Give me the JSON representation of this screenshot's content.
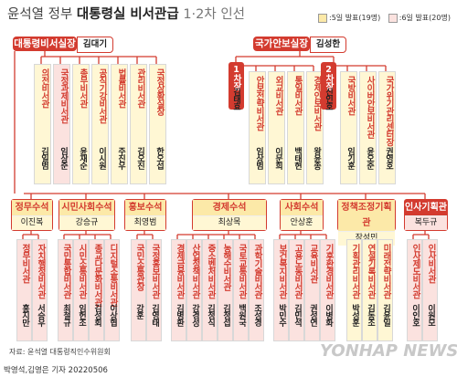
{
  "title": {
    "prefix": "윤석열 정부",
    "main": "대통령실 비서관급",
    "suffix": "1·2차 인선"
  },
  "legend": {
    "first": ":5일 발표(19명)",
    "second": ":6일 발표(20명)",
    "first_color": "#fce9a8",
    "second_color": "#fbe2df"
  },
  "chief": {
    "title": "대통령비서실장",
    "name": "김대기"
  },
  "security": {
    "title": "국가안보실장",
    "name": "김성한"
  },
  "vice1": {
    "label": "1차장",
    "name": "김태효"
  },
  "vice2": {
    "label": "2차장",
    "name": "신인호"
  },
  "chief_staff": [
    {
      "role": "의전비서관",
      "name": "김일범",
      "tone": "y"
    },
    {
      "role": "국정과제비서관",
      "name": "임상준",
      "tone": "p"
    },
    {
      "role": "총무비서관",
      "name": "윤재순",
      "tone": "y"
    },
    {
      "role": "공직기강비서관",
      "name": "이시원",
      "tone": "y"
    },
    {
      "role": "법률비서관",
      "name": "주진우",
      "tone": "y"
    },
    {
      "role": "관리비서관",
      "name": "김오진",
      "tone": "y"
    },
    {
      "role": "국정상황실장",
      "name": "한오섭",
      "tone": "y"
    }
  ],
  "vice1_staff": [
    {
      "role": "안보전략비서관",
      "name": "임상범",
      "tone": "y"
    },
    {
      "role": "외교비서관",
      "name": "이문희",
      "tone": "y"
    },
    {
      "role": "통일비서관",
      "name": "백태현",
      "tone": "y"
    },
    {
      "role": "경제안보비서관",
      "name": "왕윤종",
      "tone": "y"
    }
  ],
  "vice2_staff": [
    {
      "role": "국방비서관",
      "name": "임기훈",
      "tone": "y"
    },
    {
      "role": "사이버안보비서관",
      "name": "윤오준",
      "tone": "y"
    },
    {
      "role": "국가위기관리센터장",
      "name": "권영호",
      "tone": "y"
    }
  ],
  "secretaries": [
    {
      "title": "정무수석",
      "name": "이진복",
      "tone": "y"
    },
    {
      "title": "시민사회수석",
      "name": "강승규",
      "tone": "y"
    },
    {
      "title": "홍보수석",
      "name": "최영범",
      "tone": "y"
    },
    {
      "title": "경제수석",
      "name": "최상목",
      "tone": "y"
    },
    {
      "title": "사회수석",
      "name": "안상훈",
      "tone": "y"
    },
    {
      "title": "정책조정기획관",
      "name": "장성민",
      "tone": "y"
    },
    {
      "title": "인사기획관",
      "name": "복두규",
      "tone": "p"
    }
  ],
  "bottom_staff": [
    {
      "role": "정무비서관",
      "name": "홍지만",
      "tone": "p"
    },
    {
      "role": "자치행정비서관",
      "name": "서승우",
      "tone": "p"
    },
    {
      "role": "국민통합비서관",
      "name": "최철규",
      "tone": "p"
    },
    {
      "role": "시민소통비서관",
      "name": "임헌조",
      "tone": "p"
    },
    {
      "role": "종교다문화비서관",
      "name": "김성회",
      "tone": "p"
    },
    {
      "role": "디지털소통비서관",
      "name": "이상협",
      "tone": "p"
    },
    {
      "role": "국민소통관장",
      "name": "강훈",
      "tone": "p"
    },
    {
      "role": "국정홍보비서관",
      "name": "김영태",
      "tone": "p"
    },
    {
      "role": "경제금융비서관",
      "name": "김병환",
      "tone": "p"
    },
    {
      "role": "산업정책비서관",
      "name": "강경성",
      "tone": "p"
    },
    {
      "role": "중소벤처비서관",
      "name": "김정식",
      "tone": "p"
    },
    {
      "role": "농해수비서관",
      "name": "김정섭",
      "tone": "p"
    },
    {
      "role": "국토교통비서관",
      "name": "백원국",
      "tone": "p"
    },
    {
      "role": "과학기술비서관",
      "name": "조성경",
      "tone": "p"
    },
    {
      "role": "보건복지비서관",
      "name": "박민수",
      "tone": "p"
    },
    {
      "role": "고용노동비서관",
      "name": "김민석",
      "tone": "p"
    },
    {
      "role": "교육비서관",
      "name": "권성연",
      "tone": "p"
    },
    {
      "role": "기후환경비서관",
      "name": "이병화",
      "tone": "p"
    },
    {
      "role": "기획관리비서관",
      "name": "박성훈",
      "tone": "y"
    },
    {
      "role": "연설기록비서관",
      "name": "김동조",
      "tone": "y"
    },
    {
      "role": "미래전략비서관",
      "name": "김윤일",
      "tone": "y"
    },
    {
      "role": "인사제도비서관",
      "name": "이인호",
      "tone": "p"
    },
    {
      "role": "인사비서관",
      "name": "이원모",
      "tone": "p"
    }
  ],
  "source": "자료: 윤석열 대통령직인수위원회",
  "credit": "박영석,김영은 기자  20220506",
  "watermark": "YONHAP NEWS",
  "colors": {
    "accent": "#d33b2f",
    "first": "#fce9a8",
    "second": "#fbe2df"
  }
}
